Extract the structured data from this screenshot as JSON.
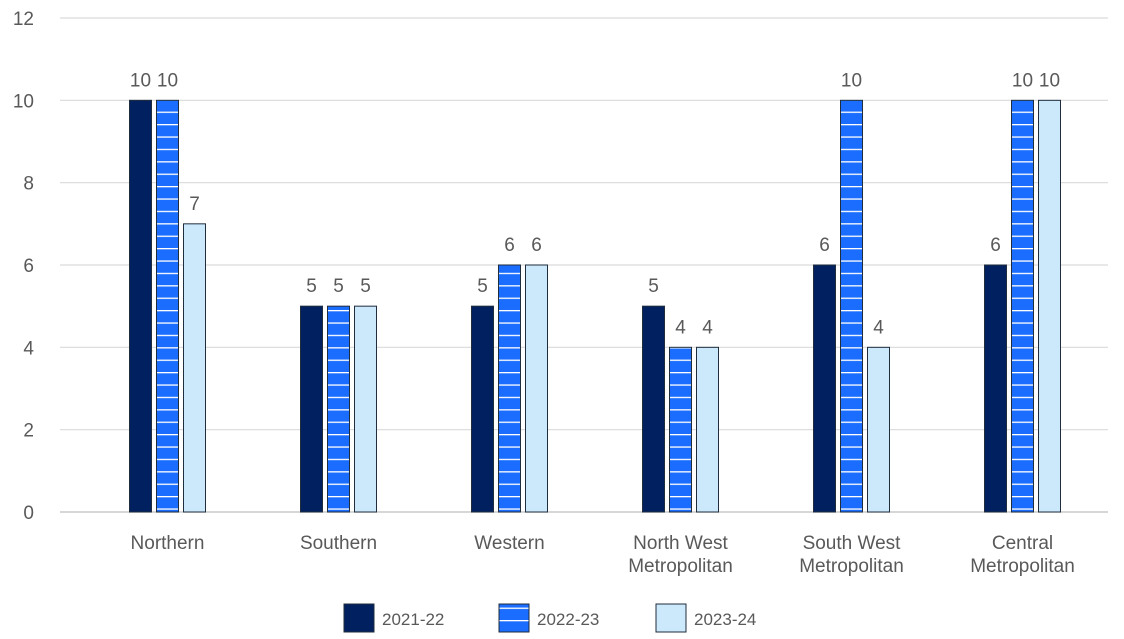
{
  "chart_data": {
    "type": "bar",
    "title": "",
    "xlabel": "",
    "ylabel": "",
    "ylim": [
      0,
      12
    ],
    "yticks": [
      0,
      2,
      4,
      6,
      8,
      10,
      12
    ],
    "grid": true,
    "legend_position": "bottom",
    "categories": [
      [
        "Northern"
      ],
      [
        "Southern"
      ],
      [
        "Western"
      ],
      [
        "North West",
        "Metropolitan"
      ],
      [
        "South West",
        "Metropolitan"
      ],
      [
        "Central",
        "Metropolitan"
      ]
    ],
    "series": [
      {
        "name": "2021-22",
        "values": [
          10,
          5,
          5,
          5,
          6,
          6
        ],
        "color": "#002060",
        "pattern": "solid"
      },
      {
        "name": "2022-23",
        "values": [
          10,
          5,
          6,
          4,
          10,
          10
        ],
        "color": "#1a6dff",
        "pattern": "horizontal-stripes"
      },
      {
        "name": "2023-24",
        "values": [
          7,
          5,
          6,
          4,
          4,
          10
        ],
        "color": "#cce8fb",
        "pattern": "solid"
      }
    ],
    "gridline_color": "#d9d9d9",
    "label_color": "#595959"
  }
}
